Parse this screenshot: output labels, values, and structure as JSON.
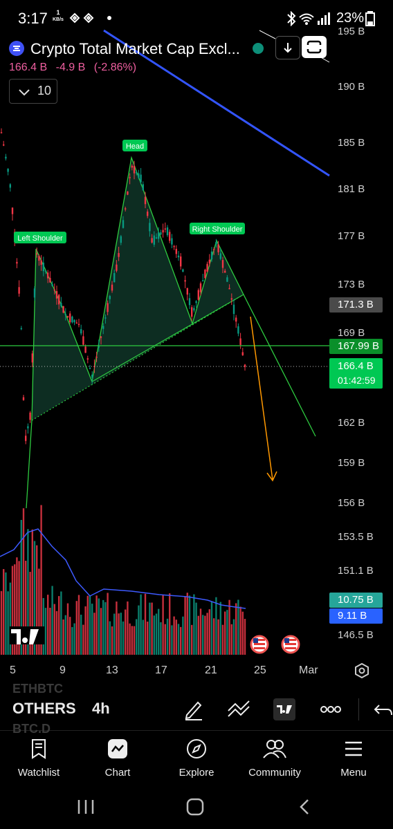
{
  "status_bar": {
    "time": "3:17",
    "net_speed_value": "1",
    "net_speed_unit": "KB/s",
    "battery": "23%"
  },
  "header": {
    "title": "Crypto Total Market Cap Excl...",
    "last_price": "166.4 B",
    "change": "-4.9 B",
    "change_pct": "(-2.86%)",
    "interval_value": "10"
  },
  "chart_data": {
    "type": "candlestick",
    "symbol": "OTHERS",
    "timeframe": "4h",
    "price_axis_labels": [
      "195 B",
      "190 B",
      "185 B",
      "181 B",
      "177 B",
      "173 B",
      "169 B",
      "162 B",
      "159 B",
      "156 B",
      "153.5 B",
      "151.1 B",
      "146.5 B"
    ],
    "date_axis_labels": [
      "5",
      "9",
      "13",
      "17",
      "21",
      "25",
      "Mar"
    ],
    "price_tags": [
      {
        "label": "171.3 B",
        "color": "#4a4a4a"
      },
      {
        "label": "167.99 B",
        "color": "#0a8f2a"
      },
      {
        "label": "166.4 B",
        "sub": "01:42:59",
        "color": "#00c853"
      },
      {
        "label": "10.75 B",
        "color": "#26a69a"
      },
      {
        "label": "9.11 B",
        "color": "#2962ff"
      }
    ],
    "annotations": [
      "Head",
      "Left Shoulder",
      "Right Shoulder"
    ],
    "pattern": "head-and-shoulders",
    "horizontal_level": 167.99,
    "colors": {
      "up": "#089981",
      "down": "#f23645",
      "trendline": "#3355ff",
      "pattern": "#2ecc40",
      "projection": "#ff9800"
    }
  },
  "toolbar": {
    "symbol": "OTHERS",
    "timeframe": "4h",
    "ghost_above": "ETHBTC",
    "ghost_below": "BTC.D"
  },
  "nav": {
    "watchlist": "Watchlist",
    "chart": "Chart",
    "explore": "Explore",
    "community": "Community",
    "menu": "Menu"
  },
  "icons": [
    "bluetooth-icon",
    "wifi-icon",
    "signal-icon",
    "battery-icon",
    "download-icon",
    "fullscreen-icon",
    "draw-icon",
    "indicators-icon",
    "tradingview-icon",
    "more-icon",
    "undo-icon"
  ]
}
